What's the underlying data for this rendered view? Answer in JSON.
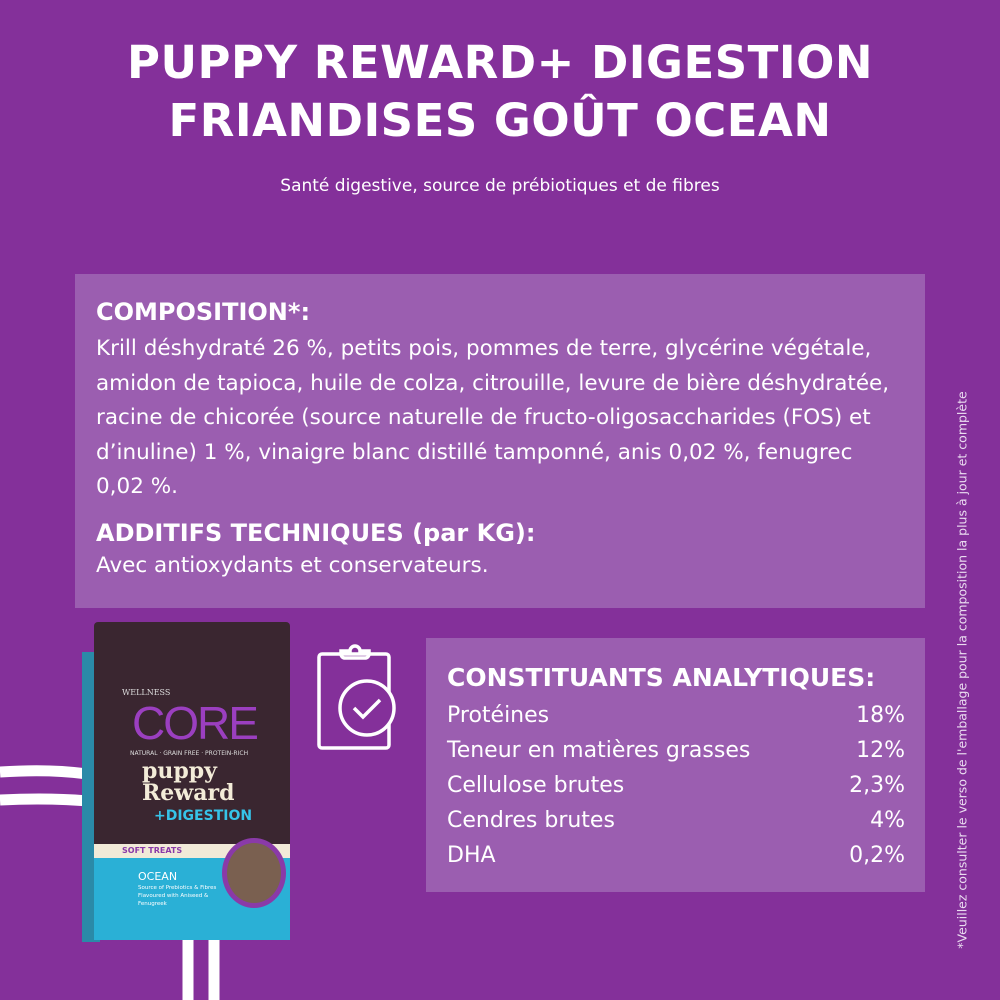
{
  "header": {
    "title_line1": "PUPPY REWARD+ DIGESTION",
    "title_line2": "FRIANDISES GOÛT OCEAN",
    "subtitle": "Santé digestive, source de prébiotiques et de fibres"
  },
  "composition": {
    "heading": "COMPOSITION*:",
    "text": "Krill déshydraté 26 %, petits pois, pommes de terre, glycérine végétale, amidon de tapioca, huile de colza, citrouille, levure de bière déshydratée, racine de chicorée (source naturelle de fructo-oligosaccharides (FOS) et d’inuline) 1 %, vinaigre blanc distillé tamponné, anis 0,02 %, fenugrec 0,02 %.",
    "additives_heading": "ADDITIFS TECHNIQUES (par KG):",
    "additives_text": "Avec antioxydants et conservateurs."
  },
  "analytical": {
    "heading": "CONSTITUANTS ANALYTIQUES:",
    "rows": [
      {
        "label": "Protéines",
        "value": "18%"
      },
      {
        "label": "Teneur en matières grasses",
        "value": "12%"
      },
      {
        "label": "Cellulose brutes",
        "value": "2,3%"
      },
      {
        "label": "Cendres brutes",
        "value": "4%"
      },
      {
        "label": "DHA",
        "value": "0,2%"
      }
    ]
  },
  "footnote": "*Veuillez consulter le verso de l'emballage pour la composition la plus à jour et complète",
  "package": {
    "brand": "WELLNESS",
    "logo": "CORE",
    "tagline": "NATURAL · GRAIN FREE · PROTEIN-RICH",
    "name1": "puppy",
    "name2": "Reward",
    "variant": "+DIGESTION",
    "band": "SOFT TREATS",
    "flavour": "OCEAN",
    "desc": "Source of Prebiotics & Fibres Flavoured with Aniseed & Fenugreek"
  },
  "icons": {
    "clipboard": "clipboard-check-icon"
  },
  "colors": {
    "background": "#84309a",
    "panel": "#9b5eb0"
  }
}
